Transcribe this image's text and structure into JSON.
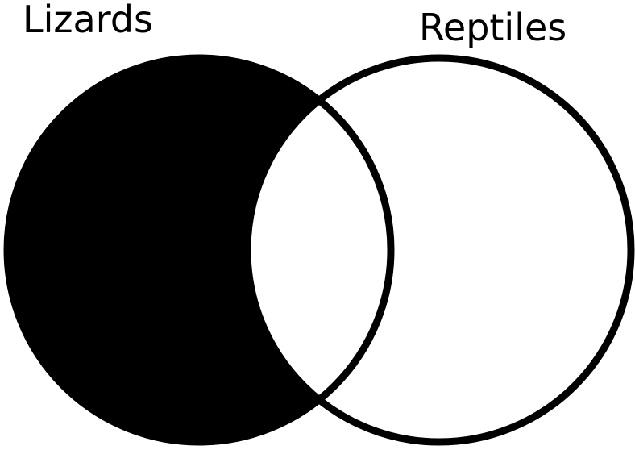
{
  "diagram": {
    "type": "venn",
    "sets": [
      {
        "name": "Lizards",
        "shaded": "outside-intersection"
      },
      {
        "name": "Reptiles",
        "shaded": "none"
      }
    ],
    "colors": {
      "shade": "#000000",
      "outline": "#000000",
      "background": "#ffffff"
    }
  }
}
